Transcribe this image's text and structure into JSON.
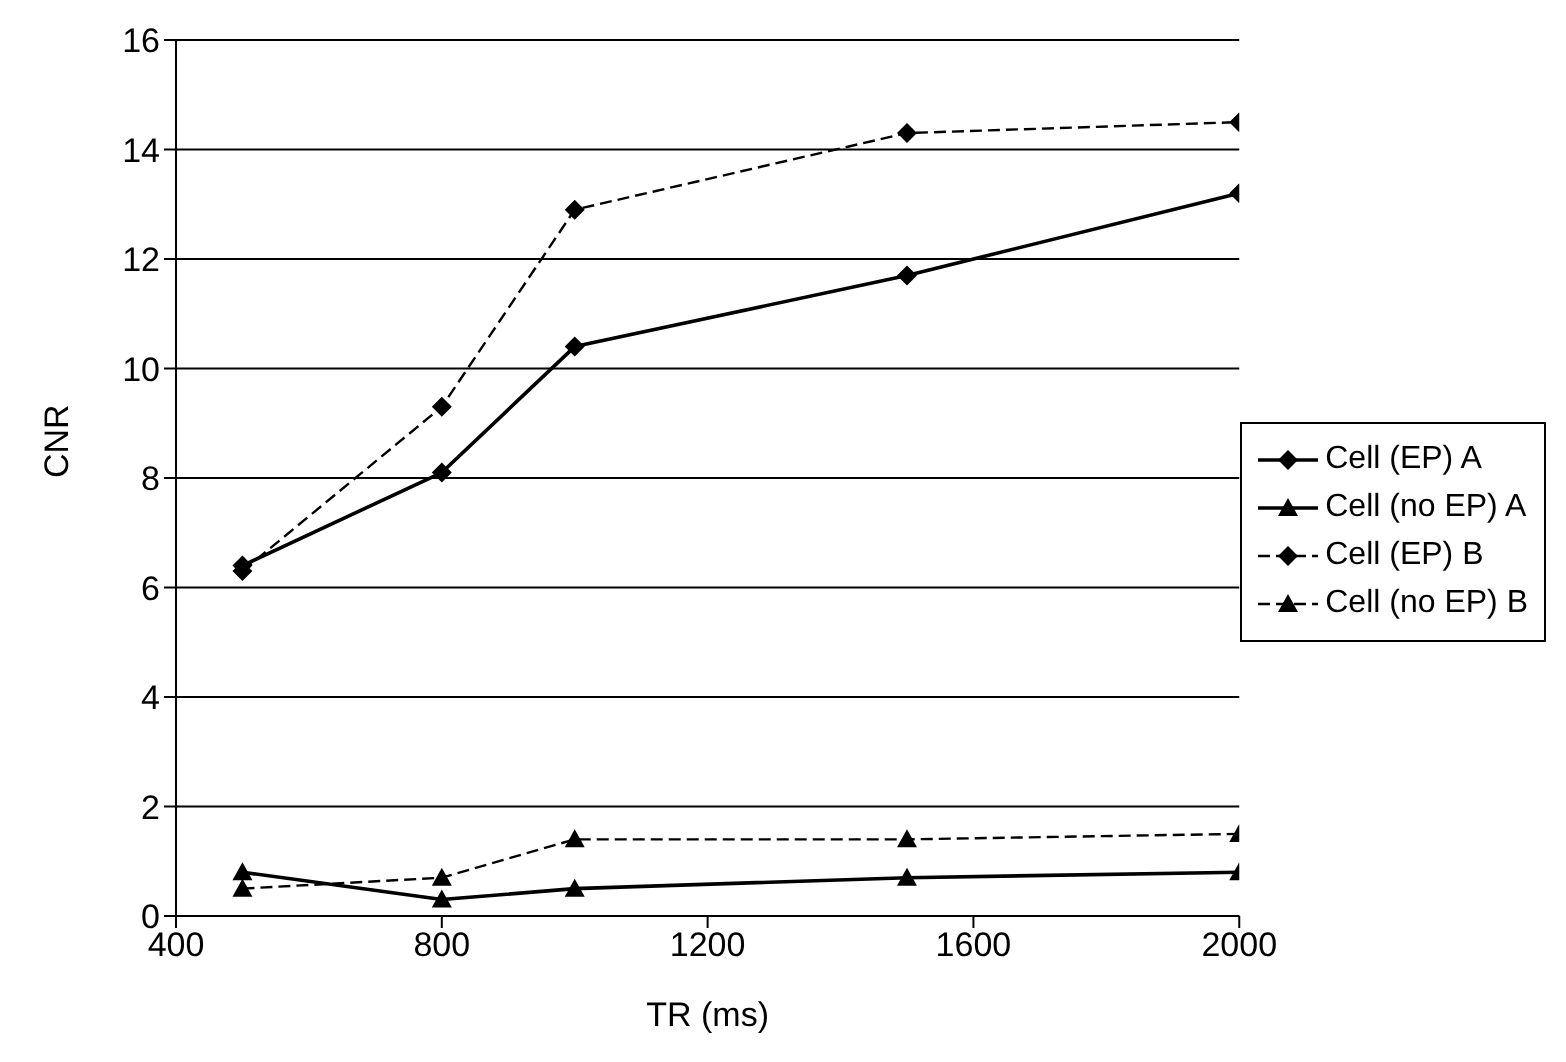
{
  "chart_data": {
    "type": "line",
    "xlabel": "TR (ms)",
    "ylabel": "CNR",
    "x": [
      500,
      800,
      1000,
      1500,
      2000
    ],
    "series": [
      {
        "name": "Cell (EP) A",
        "color": "#000000",
        "marker": "diamond",
        "line_style": "solid",
        "values": [
          6.4,
          8.1,
          10.4,
          11.7,
          13.2
        ]
      },
      {
        "name": "Cell (no EP) A",
        "color": "#000000",
        "marker": "triangle",
        "line_style": "solid",
        "values": [
          0.8,
          0.3,
          0.5,
          0.7,
          0.8
        ]
      },
      {
        "name": "Cell (EP) B",
        "color": "#000000",
        "marker": "diamond",
        "line_style": "dashed",
        "values": [
          6.3,
          9.3,
          12.9,
          14.3,
          14.5
        ]
      },
      {
        "name": "Cell (no EP) B",
        "color": "#000000",
        "marker": "triangle",
        "line_style": "dashed",
        "values": [
          0.5,
          0.7,
          1.4,
          1.4,
          1.5
        ]
      }
    ],
    "xlim": [
      400,
      2000
    ],
    "xticks": [
      400,
      800,
      1200,
      1600,
      2000
    ],
    "ylim": [
      0,
      16
    ],
    "yticks": [
      0,
      2,
      4,
      6,
      8,
      10,
      12,
      14,
      16
    ],
    "grid": "y",
    "legend": "right"
  }
}
